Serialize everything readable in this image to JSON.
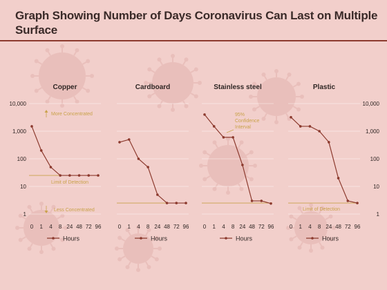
{
  "page": {
    "title_line1": "Graph Showing Number of Days Coronavirus Can Last on Multiple",
    "title_line2": "Surface"
  },
  "colors": {
    "background": "#f2cfcb",
    "series": "#8c3a2e",
    "grid": "#ffffff",
    "annotation": "#c9a24a"
  },
  "chart_data": [
    {
      "type": "line",
      "title": "Copper",
      "x": [
        "0",
        "1",
        "4",
        "8",
        "24",
        "48",
        "72",
        "96"
      ],
      "y_scale": "log",
      "ylim": [
        1,
        10000
      ],
      "y_ticks": [
        "10,000",
        "1,000",
        "100",
        "10",
        "1"
      ],
      "y_tick_side": "left",
      "values": [
        1500,
        200,
        50,
        25,
        25,
        25,
        25,
        25
      ],
      "detection_limit": 25,
      "annotations": [
        "More Concentrated",
        "Limit of Detection",
        "Less Concentrated"
      ],
      "legend": "Hours"
    },
    {
      "type": "line",
      "title": "Cardboard",
      "x": [
        "0",
        "1",
        "4",
        "8",
        "24",
        "48",
        "72",
        "96"
      ],
      "y_scale": "log",
      "ylim": [
        1,
        10000
      ],
      "values": [
        400,
        500,
        100,
        50,
        5,
        2.5,
        2.5,
        2.5
      ],
      "detection_limit": 2.5,
      "legend": "Hours"
    },
    {
      "type": "line",
      "title": "Stainless steel",
      "x": [
        "0",
        "1",
        "4",
        "8",
        "24",
        "48",
        "72",
        "96"
      ],
      "y_scale": "log",
      "ylim": [
        1,
        10000
      ],
      "values": [
        4000,
        1500,
        600,
        600,
        60,
        3,
        3,
        2.4
      ],
      "detection_limit": 2.5,
      "annotations": [
        "95% Confidence Interval"
      ],
      "legend": "Hours"
    },
    {
      "type": "line",
      "title": "Plastic",
      "x": [
        "0",
        "1",
        "4",
        "8",
        "24",
        "48",
        "72",
        "96"
      ],
      "y_scale": "log",
      "ylim": [
        1,
        10000
      ],
      "y_ticks": [
        "10,000",
        "1,000",
        "100",
        "10",
        "1"
      ],
      "y_tick_side": "right",
      "values": [
        3200,
        1500,
        1500,
        1000,
        400,
        20,
        3,
        2.5
      ],
      "detection_limit": 2.5,
      "annotations": [
        "Limit of Detection"
      ],
      "legend": "Hours"
    }
  ]
}
